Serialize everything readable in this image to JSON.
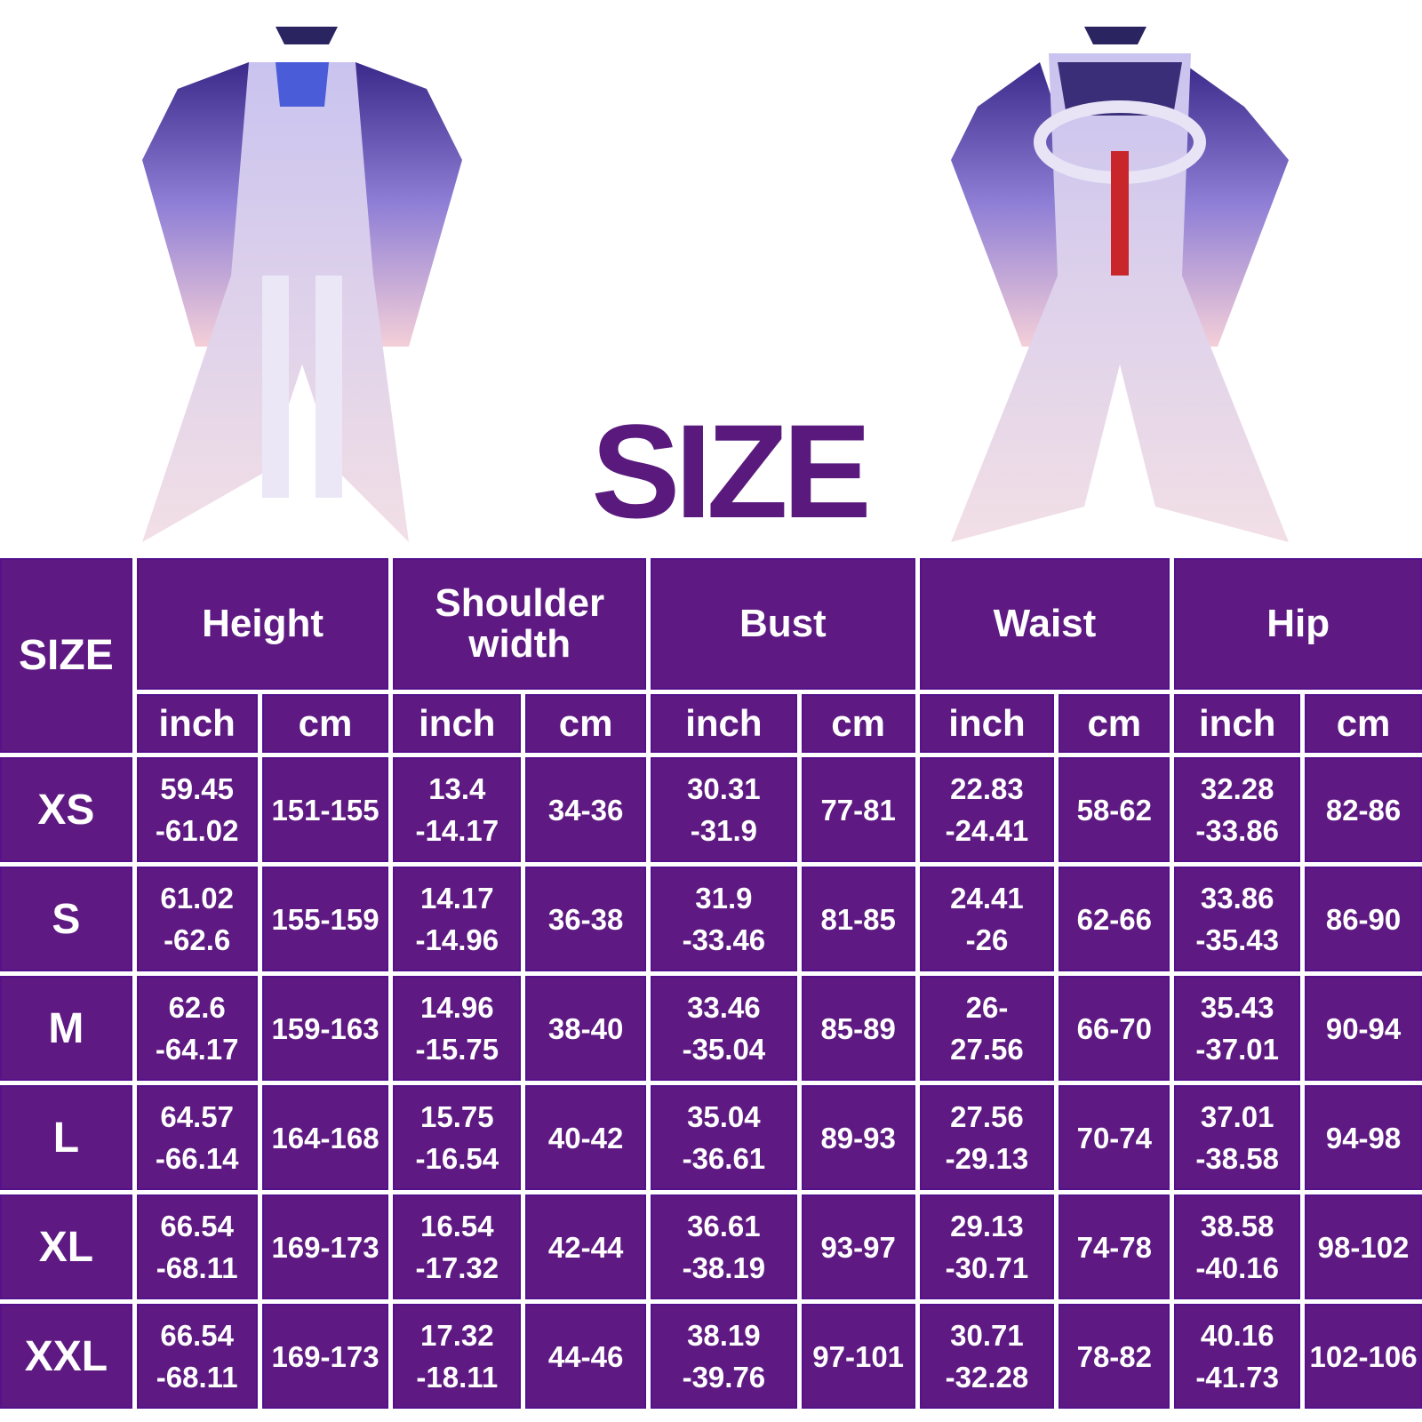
{
  "title": "SIZE",
  "colors": {
    "purple": "#5e1a82",
    "title": "#5a1a7d",
    "text": "#ffffff"
  },
  "images": {
    "front": "costume-front-view",
    "back": "costume-back-view"
  },
  "table": {
    "size_header": "SIZE",
    "groups": [
      "Height",
      "Shoulder\nwidth",
      "Bust",
      "Waist",
      "Hip"
    ],
    "units": [
      "inch",
      "cm",
      "inch",
      "cm",
      "inch",
      "cm",
      "inch",
      "cm",
      "inch",
      "cm"
    ],
    "rows": [
      {
        "size": "XS",
        "cells": [
          "59.45\n-61.02",
          "151-155",
          "13.4\n-14.17",
          "34-36",
          "30.31\n-31.9",
          "77-81",
          "22.83\n-24.41",
          "58-62",
          "32.28\n-33.86",
          "82-86"
        ]
      },
      {
        "size": "S",
        "cells": [
          "61.02\n-62.6",
          "155-159",
          "14.17\n-14.96",
          "36-38",
          "31.9\n-33.46",
          "81-85",
          "24.41\n-26",
          "62-66",
          "33.86\n-35.43",
          "86-90"
        ]
      },
      {
        "size": "M",
        "cells": [
          "62.6\n-64.17",
          "159-163",
          "14.96\n-15.75",
          "38-40",
          "33.46\n-35.04",
          "85-89",
          "26-\n27.56",
          "66-70",
          "35.43\n-37.01",
          "90-94"
        ]
      },
      {
        "size": "L",
        "cells": [
          "64.57\n-66.14",
          "164-168",
          "15.75\n-16.54",
          "40-42",
          "35.04\n-36.61",
          "89-93",
          "27.56\n-29.13",
          "70-74",
          "37.01\n-38.58",
          "94-98"
        ]
      },
      {
        "size": "XL",
        "cells": [
          "66.54\n-68.11",
          "169-173",
          "16.54\n-17.32",
          "42-44",
          "36.61\n-38.19",
          "93-97",
          "29.13\n-30.71",
          "74-78",
          "38.58\n-40.16",
          "98-102"
        ]
      },
      {
        "size": "XXL",
        "cells": [
          "66.54\n-68.11",
          "169-173",
          "17.32\n-18.11",
          "44-46",
          "38.19\n-39.76",
          "97-101",
          "30.71\n-32.28",
          "78-82",
          "40.16\n-41.73",
          "102-106"
        ]
      }
    ]
  }
}
